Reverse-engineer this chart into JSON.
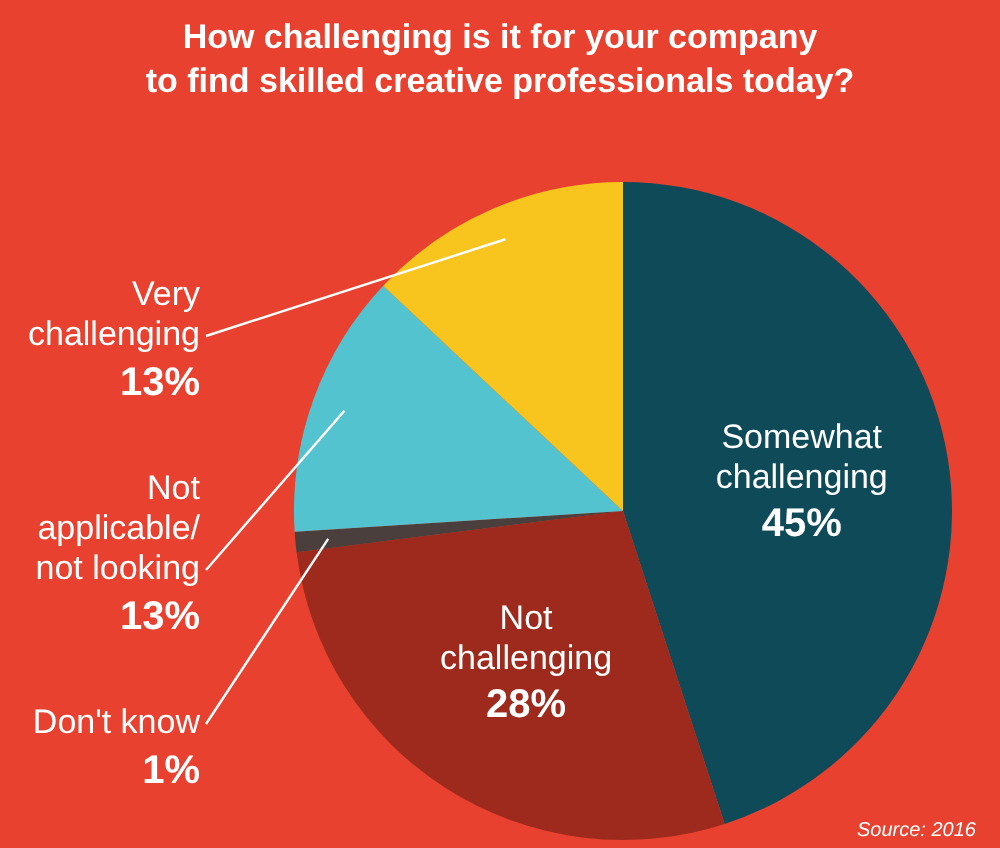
{
  "chart_data": {
    "type": "pie",
    "title": "How challenging is it for your company\nto find skilled creative professionals today?",
    "categories": [
      "Somewhat\nchallenging",
      "Not\nchallenging",
      "Don't know",
      "Not\napplicable/\nnot looking",
      "Very\nchallenging"
    ],
    "values": [
      45,
      28,
      1,
      13,
      13
    ],
    "colors": [
      "#0f4a59",
      "#9e2a1d",
      "#4a3f3c",
      "#53c4cf",
      "#f7c51e"
    ],
    "value_labels": [
      "45%",
      "28%",
      "1%",
      "13%",
      "13%"
    ],
    "annotations": [
      "Source: 2016"
    ]
  }
}
